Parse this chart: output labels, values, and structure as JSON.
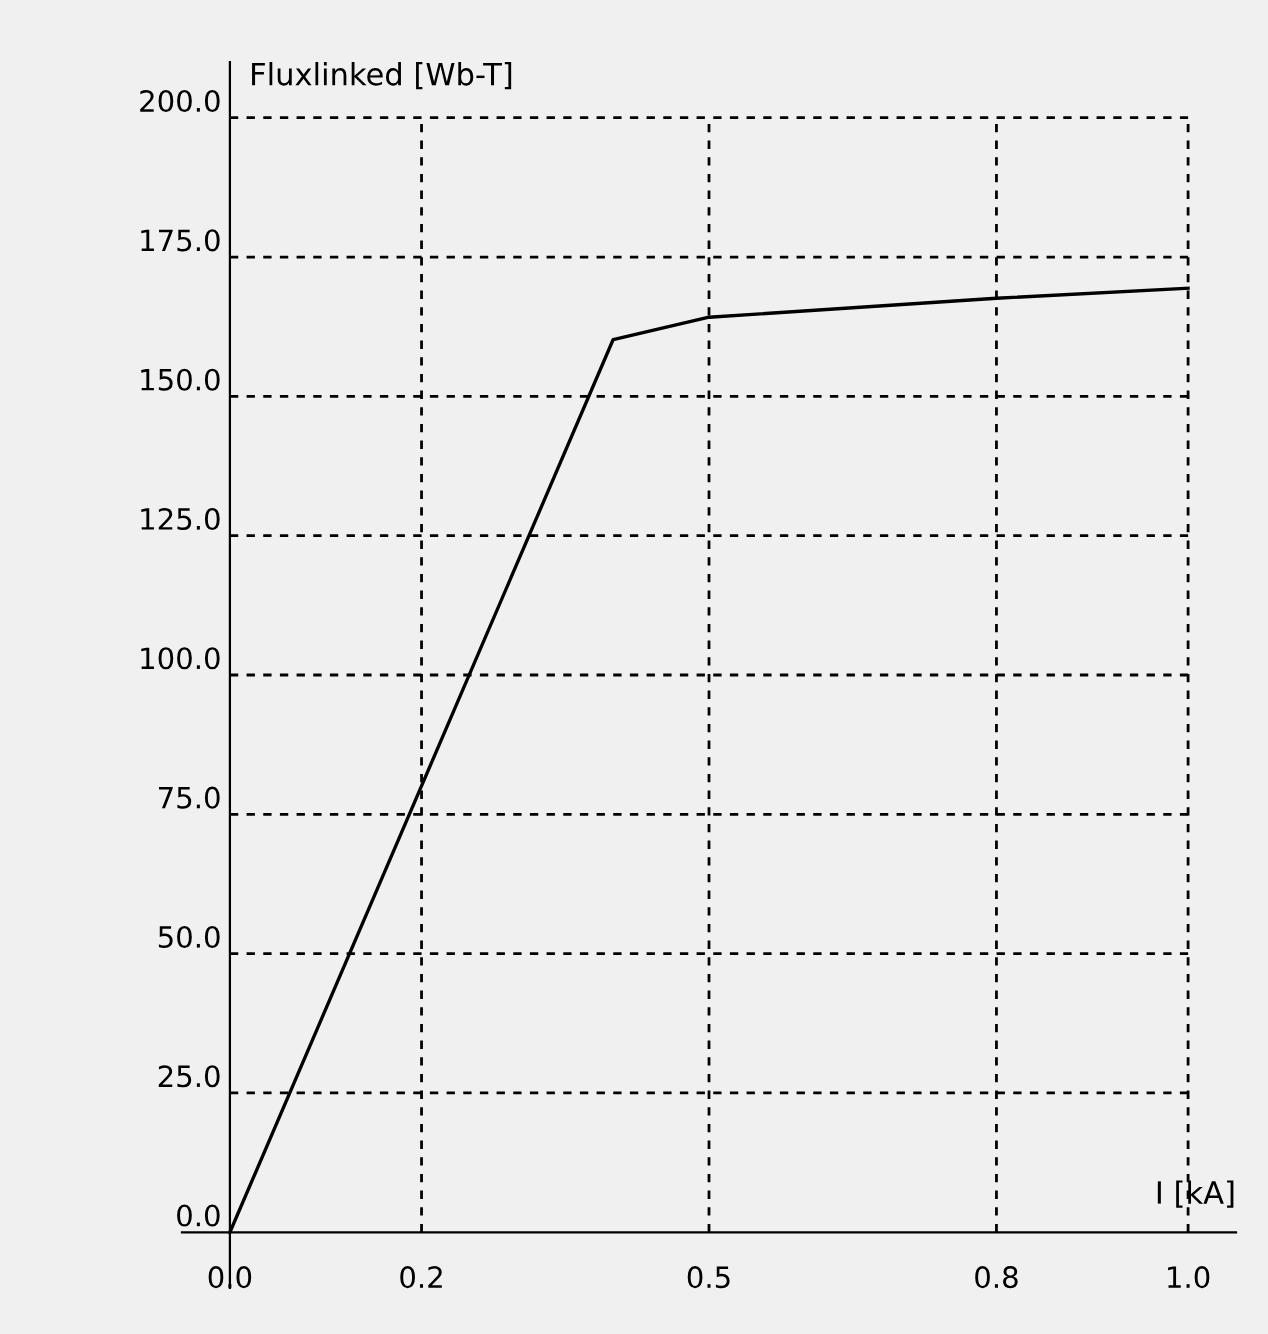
{
  "chart_data": {
    "type": "line",
    "xlabel": "I [kA]",
    "ylabel": "Fluxlinked [Wb-T]",
    "x": [
      0.0,
      0.4,
      0.5,
      0.8,
      1.0
    ],
    "series": [
      {
        "color": "#000000",
        "values": [
          0.0,
          160.2,
          164.2,
          167.6,
          169.4
        ]
      }
    ],
    "xlim": [
      -0.05,
      1.05
    ],
    "ylim": [
      -10,
      210
    ],
    "xticks": [
      {
        "value": 0.0,
        "label": "0.0"
      },
      0.2,
      0.5,
      0.8,
      {
        "value": 1.0,
        "label": "1.0"
      }
    ],
    "yticks": [
      {
        "value": 0,
        "label": "0.0"
      },
      {
        "value": 25,
        "label": "25.0"
      },
      {
        "value": 50,
        "label": "50.0"
      },
      {
        "value": 75,
        "label": "75.0"
      },
      {
        "value": 100,
        "label": "100.0"
      },
      {
        "value": 125,
        "label": "125.0"
      },
      {
        "value": 150,
        "label": "150.0"
      },
      {
        "value": 175,
        "label": "175.0"
      },
      {
        "value": 200,
        "label": "200.0"
      }
    ],
    "grid": true,
    "line_style": "solid",
    "marker": "none"
  }
}
